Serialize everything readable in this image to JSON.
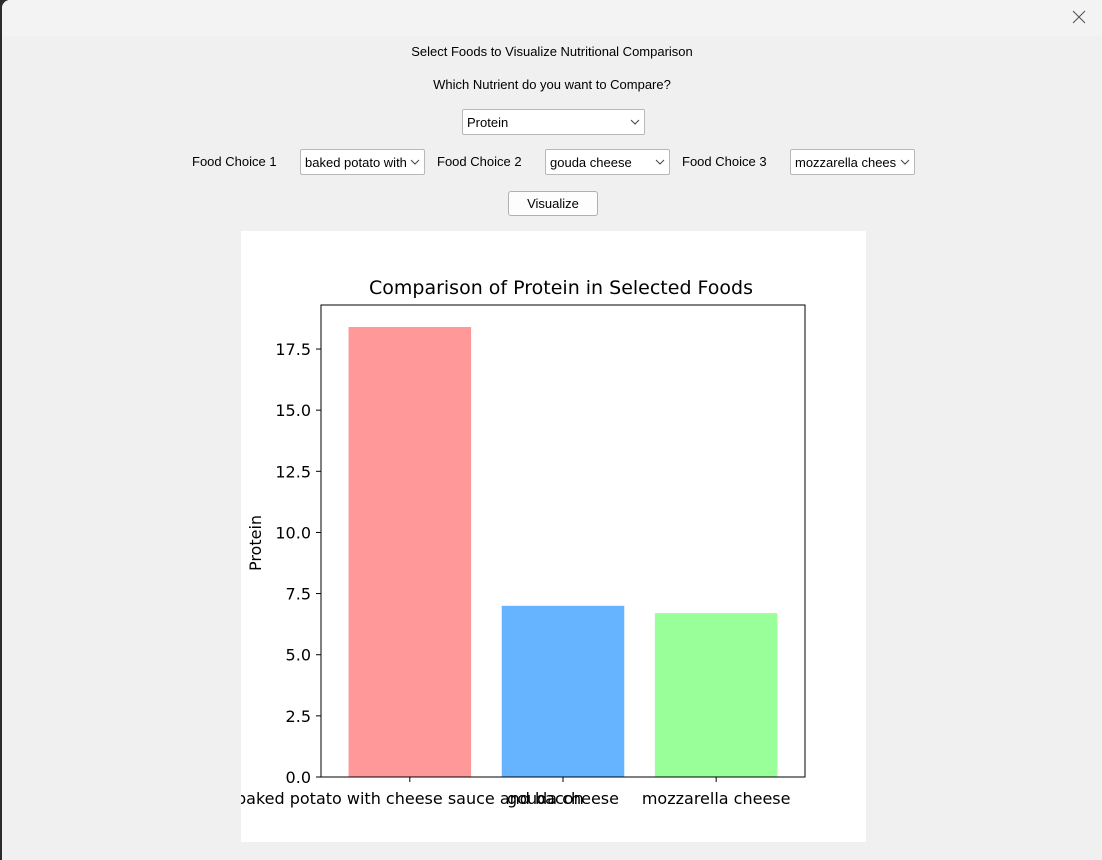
{
  "window": {
    "close_icon": "close-icon"
  },
  "form": {
    "heading": "Select Foods to Visualize Nutritional Comparison",
    "nutrient_question": "Which Nutrient do you want to Compare?",
    "nutrient_selected": "Protein",
    "food_choice_1_label": "Food Choice 1",
    "food_choice_1_value": "baked potato with cheese sauce and bacon",
    "food_choice_2_label": "Food Choice 2",
    "food_choice_2_value": "gouda cheese",
    "food_choice_3_label": "Food Choice 3",
    "food_choice_3_value": "mozzarella cheese",
    "visualize_label": "Visualize"
  },
  "chart_data": {
    "type": "bar",
    "title": "Comparison of Protein in Selected Foods",
    "xlabel": "",
    "ylabel": "Protein",
    "categories": [
      "baked potato with cheese sauce and bacon",
      "gouda cheese",
      "mozzarella cheese"
    ],
    "values": [
      18.4,
      7.0,
      6.7
    ],
    "colors": [
      "#ff9999",
      "#66b3ff",
      "#99ff99"
    ],
    "ylim": [
      0,
      19.3
    ],
    "yticks": [
      "0.0",
      "2.5",
      "5.0",
      "7.5",
      "10.0",
      "12.5",
      "15.0",
      "17.5"
    ],
    "ytick_values": [
      0,
      2.5,
      5,
      7.5,
      10,
      12.5,
      15,
      17.5
    ],
    "grid": false,
    "legend": "none"
  }
}
